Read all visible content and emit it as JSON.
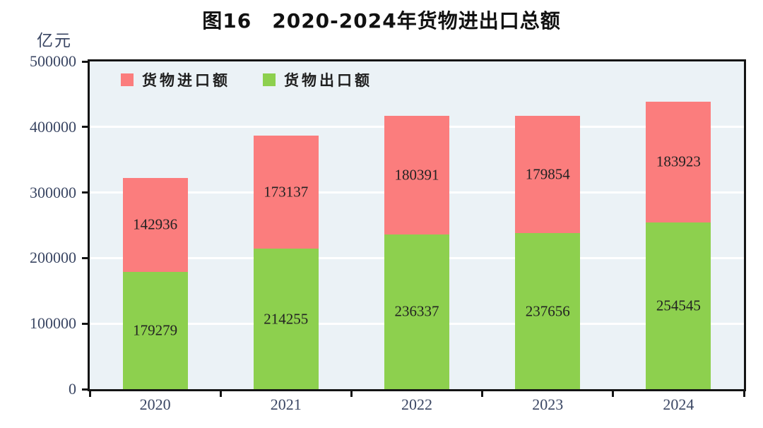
{
  "title": "图16　2020-2024年货物进出口总额",
  "unit_label": "亿元",
  "legend": [
    {
      "label": "货物进口额",
      "color": "#fb7d7d"
    },
    {
      "label": "货物出口额",
      "color": "#8dd04e"
    }
  ],
  "chart_data": {
    "type": "bar",
    "stacked": true,
    "title": "图16　2020-2024年货物进出口总额",
    "ylabel": "亿元",
    "xlabel": "",
    "categories": [
      "2020",
      "2021",
      "2022",
      "2023",
      "2024"
    ],
    "series": [
      {
        "name": "货物出口额",
        "key": "exports",
        "color": "#8dd04e",
        "values": [
          179279,
          214255,
          236337,
          237656,
          254545
        ]
      },
      {
        "name": "货物进口额",
        "key": "imports",
        "color": "#fb7d7d",
        "values": [
          142936,
          173137,
          180391,
          179854,
          183923
        ]
      }
    ],
    "ylim": [
      0,
      500000
    ],
    "yticks": [
      0,
      100000,
      200000,
      300000,
      400000,
      500000
    ],
    "grid": true,
    "legend_position": "top-left-inside",
    "colors": {
      "plot_background": "#ebf2f6",
      "gridline": "#ffffff",
      "axis_frame": "#141414",
      "tick_label": "#3a4663",
      "bar_value_label": "#222222",
      "title": "#111111"
    }
  }
}
